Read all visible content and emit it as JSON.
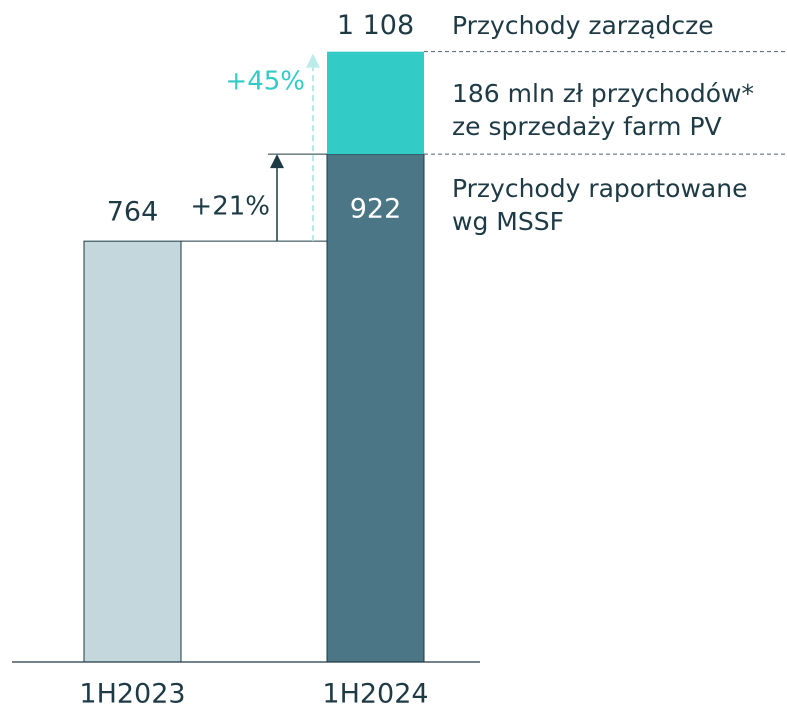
{
  "chart_data": {
    "type": "stacked_bar",
    "categories": [
      "1H2023",
      "1H2024"
    ],
    "series": [
      {
        "name": "Przychody raportowane wg MSSF",
        "colors": [
          "#c3d7dd",
          "#4a7685"
        ],
        "values": [
          764,
          922
        ]
      },
      {
        "name": "186 mln zł przychodów* ze sprzedaży farm PV",
        "color": "#33cbc6",
        "values": [
          null,
          186
        ]
      }
    ],
    "totals": [
      null,
      1108
    ],
    "total_value_labels": [
      null,
      "1 108"
    ],
    "ylim": [
      0,
      1200
    ],
    "annotations": {
      "growth_reported": "+21%",
      "growth_management": "+45%",
      "management_label": "Przychody zarządcze",
      "pv_line1": "186 mln zł przychodów*",
      "pv_line2": "ze sprzedaży farm PV",
      "reported_line1": "Przychody raportowane",
      "reported_line2": "wg MSSF"
    }
  }
}
